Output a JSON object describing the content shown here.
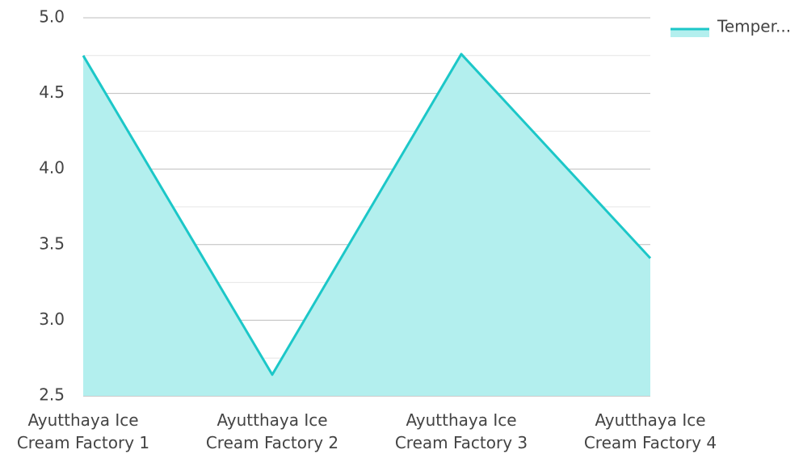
{
  "chart_data": {
    "type": "area",
    "categories": [
      "Ayutthaya Ice Cream Factory 1",
      "Ayutthaya Ice Cream Factory 2",
      "Ayutthaya Ice Cream Factory 3",
      "Ayutthaya Ice Cream Factory 4"
    ],
    "series": [
      {
        "name": "Temper...",
        "color": "#1cc7c8",
        "fill": "#b3efee",
        "values": [
          4.75,
          2.64,
          4.76,
          3.41
        ]
      }
    ],
    "ylim": [
      2.5,
      5.0
    ],
    "yticks": [
      2.5,
      {
        "value": 3,
        "label": "3.0"
      },
      3.5,
      {
        "value": 4,
        "label": "4.0"
      },
      4.5,
      {
        "value": 5,
        "label": "5.0"
      }
    ],
    "grid": true,
    "minor_grid": true,
    "legend": "top-right"
  }
}
